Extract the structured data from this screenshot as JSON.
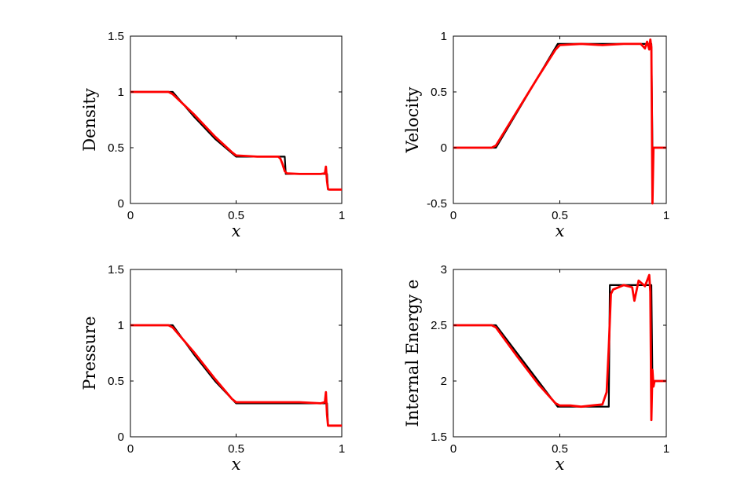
{
  "colors": {
    "reference": "#000000",
    "numerical": "#ff0000"
  },
  "chart_data": [
    {
      "type": "line",
      "ylabel": "Density",
      "xlabel": "x",
      "xlim": [
        0,
        1
      ],
      "ylim": [
        0,
        1.5
      ],
      "xticks": [
        "0",
        "0.5",
        "1"
      ],
      "yticks": [
        "0",
        "0.5",
        "1",
        "1.5"
      ],
      "series": [
        {
          "color": "#000000",
          "x": [
            0,
            0.2,
            0.3,
            0.4,
            0.5,
            0.73,
            0.735,
            0.93,
            0.935,
            1.0
          ],
          "y": [
            1.0,
            1.0,
            0.78,
            0.58,
            0.42,
            0.42,
            0.265,
            0.265,
            0.125,
            0.125
          ]
        },
        {
          "color": "#ff0000",
          "x": [
            0,
            0.18,
            0.2,
            0.3,
            0.4,
            0.48,
            0.5,
            0.6,
            0.7,
            0.71,
            0.72,
            0.73,
            0.74,
            0.8,
            0.9,
            0.92,
            0.925,
            0.93,
            0.935,
            0.94,
            1.0
          ],
          "y": [
            1.0,
            1.0,
            0.98,
            0.8,
            0.6,
            0.46,
            0.43,
            0.42,
            0.42,
            0.4,
            0.35,
            0.29,
            0.27,
            0.265,
            0.265,
            0.27,
            0.33,
            0.2,
            0.13,
            0.125,
            0.125
          ]
        }
      ]
    },
    {
      "type": "line",
      "ylabel": "Velocity",
      "xlabel": "x",
      "xlim": [
        0,
        1
      ],
      "ylim": [
        -0.5,
        1
      ],
      "xticks": [
        "0",
        "0.5",
        "1"
      ],
      "yticks": [
        "-0.5",
        "0",
        "0.5",
        "1"
      ],
      "series": [
        {
          "color": "#000000",
          "x": [
            0,
            0.2,
            0.49,
            0.93,
            0.935,
            1.0
          ],
          "y": [
            0,
            0,
            0.93,
            0.93,
            0,
            0
          ]
        },
        {
          "color": "#ff0000",
          "x": [
            0,
            0.18,
            0.2,
            0.3,
            0.4,
            0.48,
            0.5,
            0.6,
            0.7,
            0.8,
            0.88,
            0.9,
            0.91,
            0.92,
            0.925,
            0.93,
            0.935,
            0.94,
            1.0
          ],
          "y": [
            0,
            0,
            0.02,
            0.33,
            0.64,
            0.88,
            0.92,
            0.93,
            0.92,
            0.93,
            0.93,
            0.89,
            0.95,
            0.88,
            0.97,
            0.9,
            -0.5,
            0.0,
            0
          ]
        }
      ]
    },
    {
      "type": "line",
      "ylabel": "Pressure",
      "xlabel": "x",
      "xlim": [
        0,
        1
      ],
      "ylim": [
        0,
        1.5
      ],
      "xticks": [
        "0",
        "0.5",
        "1"
      ],
      "yticks": [
        "0",
        "0.5",
        "1",
        "1.5"
      ],
      "series": [
        {
          "color": "#000000",
          "x": [
            0,
            0.2,
            0.3,
            0.4,
            0.5,
            0.93,
            0.935,
            1.0
          ],
          "y": [
            1.0,
            1.0,
            0.74,
            0.5,
            0.3,
            0.3,
            0.1,
            0.1
          ]
        },
        {
          "color": "#ff0000",
          "x": [
            0,
            0.18,
            0.2,
            0.3,
            0.4,
            0.48,
            0.5,
            0.6,
            0.7,
            0.8,
            0.9,
            0.92,
            0.925,
            0.93,
            0.935,
            0.94,
            1.0
          ],
          "y": [
            1.0,
            1.0,
            0.98,
            0.76,
            0.52,
            0.34,
            0.31,
            0.31,
            0.31,
            0.31,
            0.3,
            0.31,
            0.4,
            0.2,
            0.1,
            0.1,
            0.1
          ]
        }
      ]
    },
    {
      "type": "line",
      "ylabel": "Internal Energy e",
      "xlabel": "x",
      "xlim": [
        0,
        1
      ],
      "ylim": [
        1.5,
        3
      ],
      "xticks": [
        "0",
        "0.5",
        "1"
      ],
      "yticks": [
        "1.5",
        "2",
        "2.5",
        "3"
      ],
      "series": [
        {
          "color": "#000000",
          "x": [
            0,
            0.2,
            0.49,
            0.73,
            0.735,
            0.93,
            0.935,
            1.0
          ],
          "y": [
            2.5,
            2.5,
            1.77,
            1.77,
            2.86,
            2.86,
            2.0,
            2.0
          ]
        },
        {
          "color": "#ff0000",
          "x": [
            0,
            0.18,
            0.2,
            0.3,
            0.4,
            0.48,
            0.5,
            0.55,
            0.6,
            0.65,
            0.7,
            0.72,
            0.73,
            0.74,
            0.75,
            0.8,
            0.84,
            0.85,
            0.87,
            0.9,
            0.92,
            0.925,
            0.93,
            0.935,
            0.94,
            0.945,
            1.0
          ],
          "y": [
            2.5,
            2.5,
            2.48,
            2.22,
            1.97,
            1.8,
            1.78,
            1.78,
            1.77,
            1.78,
            1.79,
            1.9,
            2.3,
            2.78,
            2.82,
            2.86,
            2.84,
            2.72,
            2.9,
            2.85,
            2.95,
            2.8,
            1.65,
            2.1,
            1.95,
            2.0,
            2.0
          ]
        }
      ]
    }
  ]
}
